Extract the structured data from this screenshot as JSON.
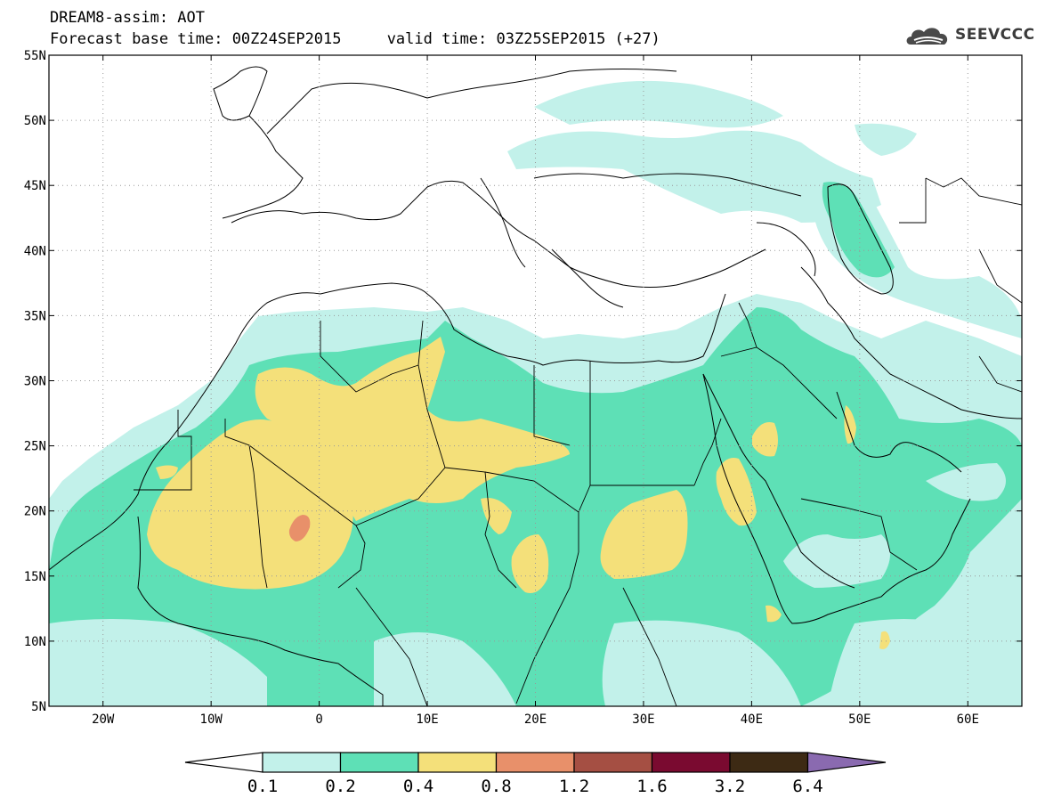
{
  "title": {
    "line1": "DREAM8-assim: AOT",
    "line2": "Forecast base time: 00Z24SEP2015     valid time: 03Z25SEP2015 (+27)"
  },
  "logo": {
    "text": "SEEVCCC",
    "icon": "cloud-logo-icon"
  },
  "map": {
    "lon_range": [
      -25,
      65
    ],
    "lat_range": [
      5,
      55
    ],
    "lat_ticks": [
      "5N",
      "10N",
      "15N",
      "20N",
      "25N",
      "30N",
      "35N",
      "40N",
      "45N",
      "50N",
      "55N"
    ],
    "lon_ticks": [
      "20W",
      "10W",
      "0",
      "10E",
      "20E",
      "30E",
      "40E",
      "50E",
      "60E"
    ],
    "grid": "dotted"
  },
  "colorbar": {
    "labels": [
      "0.1",
      "0.2",
      "0.4",
      "0.8",
      "1.2",
      "1.6",
      "3.2",
      "6.4"
    ],
    "colors": [
      "#c2f1ea",
      "#5ee0b6",
      "#f4e07a",
      "#e8906a",
      "#a54f43",
      "#7a0a30",
      "#3d2a14",
      "#8a6ab0"
    ],
    "under_color": "#ffffff"
  }
}
